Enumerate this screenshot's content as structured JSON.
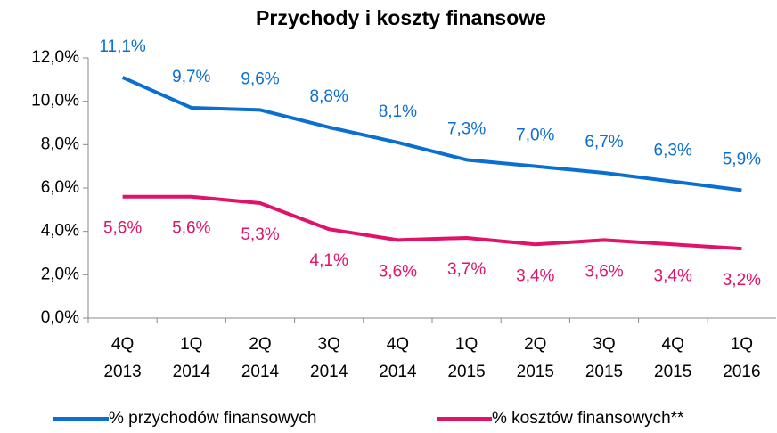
{
  "chart_data": {
    "type": "line",
    "title": "Przychody i koszty finansowe",
    "categories": [
      [
        "4Q",
        "2013"
      ],
      [
        "1Q",
        "2014"
      ],
      [
        "2Q",
        "2014"
      ],
      [
        "3Q",
        "2014"
      ],
      [
        "4Q",
        "2014"
      ],
      [
        "1Q",
        "2015"
      ],
      [
        "2Q",
        "2015"
      ],
      [
        "3Q",
        "2015"
      ],
      [
        "4Q",
        "2015"
      ],
      [
        "1Q",
        "2016"
      ]
    ],
    "series": [
      {
        "name": "% przychodów finansowych",
        "color": "#0a6fd0",
        "values": [
          11.1,
          9.7,
          9.6,
          8.8,
          8.1,
          7.3,
          7.0,
          6.7,
          6.3,
          5.9
        ],
        "value_labels": [
          "11,1%",
          "9,7%",
          "9,6%",
          "8,8%",
          "8,1%",
          "7,3%",
          "7,0%",
          "6,7%",
          "6,3%",
          "5,9%"
        ],
        "label_position": "above"
      },
      {
        "name": "% kosztów finansowych**",
        "color": "#e0126a",
        "values": [
          5.6,
          5.6,
          5.3,
          4.1,
          3.6,
          3.7,
          3.4,
          3.6,
          3.4,
          3.2
        ],
        "value_labels": [
          "5,6%",
          "5,6%",
          "5,3%",
          "4,1%",
          "3,6%",
          "3,7%",
          "3,4%",
          "3,6%",
          "3,4%",
          "3,2%"
        ],
        "label_position": "below"
      }
    ],
    "ylim": [
      0,
      12
    ],
    "yticks": [
      {
        "value": 0,
        "label": "0,0%"
      },
      {
        "value": 2,
        "label": "2,0%"
      },
      {
        "value": 4,
        "label": "4,0%"
      },
      {
        "value": 6,
        "label": "6,0%"
      },
      {
        "value": 8,
        "label": "8,0%"
      },
      {
        "value": 10,
        "label": "10,0%"
      },
      {
        "value": 12,
        "label": "12,0%"
      }
    ],
    "grid": false,
    "legend": "bottom"
  }
}
